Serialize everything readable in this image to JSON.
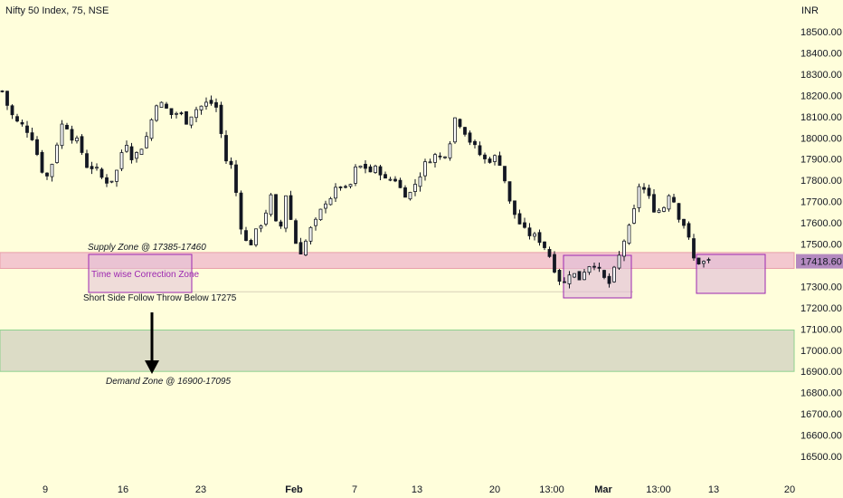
{
  "header": {
    "title": "Nifty 50 Index, 75, NSE",
    "currency": "INR"
  },
  "chart_data": {
    "type": "candlestick",
    "ylim": [
      16450,
      18600
    ],
    "y_ticks": [
      18500,
      18400,
      18300,
      18200,
      18100,
      18000,
      17900,
      17800,
      17700,
      17600,
      17500,
      17300,
      17200,
      17100,
      17000,
      16900,
      16800,
      16700,
      16600,
      16500
    ],
    "y_tick_labels": [
      "18500.00",
      "18400.00",
      "18300.00",
      "18200.00",
      "18100.00",
      "18000.00",
      "17900.00",
      "17800.00",
      "17700.00",
      "17600.00",
      "17500.00",
      "17300.00",
      "17200.00",
      "17100.00",
      "17000.00",
      "16900.00",
      "16800.00",
      "16700.00",
      "16600.00",
      "16500.00"
    ],
    "x_tick_labels": [
      "9",
      "16",
      "23",
      "Feb",
      "7",
      "13",
      "20",
      "13:00",
      "Mar",
      "13:00",
      "13",
      "20"
    ],
    "x_tick_bold": [
      false,
      false,
      false,
      true,
      false,
      false,
      false,
      false,
      true,
      false,
      false,
      false
    ],
    "last_price": "17418.60",
    "last_price_value": 17418.6,
    "close_path": [
      [
        0,
        18220
      ],
      [
        0.01,
        18120
      ],
      [
        0.02,
        18070
      ],
      [
        0.03,
        18050
      ],
      [
        0.04,
        18000
      ],
      [
        0.05,
        17860
      ],
      [
        0.06,
        17810
      ],
      [
        0.07,
        17960
      ],
      [
        0.08,
        18090
      ],
      [
        0.09,
        18010
      ],
      [
        0.1,
        17970
      ],
      [
        0.11,
        17870
      ],
      [
        0.12,
        17860
      ],
      [
        0.13,
        17810
      ],
      [
        0.14,
        17790
      ],
      [
        0.15,
        17850
      ],
      [
        0.16,
        18000
      ],
      [
        0.17,
        17900
      ],
      [
        0.18,
        17950
      ],
      [
        0.19,
        18020
      ],
      [
        0.2,
        18170
      ],
      [
        0.21,
        18150
      ],
      [
        0.22,
        18110
      ],
      [
        0.23,
        18120
      ],
      [
        0.24,
        18080
      ],
      [
        0.25,
        18130
      ],
      [
        0.26,
        18150
      ],
      [
        0.27,
        18170
      ],
      [
        0.28,
        18140
      ],
      [
        0.29,
        17900
      ],
      [
        0.3,
        17860
      ],
      [
        0.31,
        17600
      ],
      [
        0.32,
        17480
      ],
      [
        0.33,
        17550
      ],
      [
        0.34,
        17620
      ],
      [
        0.35,
        17720
      ],
      [
        0.36,
        17520
      ],
      [
        0.37,
        17750
      ],
      [
        0.38,
        17520
      ],
      [
        0.39,
        17460
      ],
      [
        0.4,
        17560
      ],
      [
        0.41,
        17610
      ],
      [
        0.42,
        17700
      ],
      [
        0.43,
        17730
      ],
      [
        0.44,
        17780
      ],
      [
        0.45,
        17740
      ],
      [
        0.46,
        17850
      ],
      [
        0.47,
        17870
      ],
      [
        0.48,
        17840
      ],
      [
        0.49,
        17860
      ],
      [
        0.5,
        17790
      ],
      [
        0.51,
        17820
      ],
      [
        0.52,
        17750
      ],
      [
        0.53,
        17730
      ],
      [
        0.54,
        17800
      ],
      [
        0.55,
        17870
      ],
      [
        0.56,
        17920
      ],
      [
        0.57,
        17910
      ],
      [
        0.58,
        17940
      ],
      [
        0.59,
        18100
      ],
      [
        0.6,
        18050
      ],
      [
        0.61,
        17980
      ],
      [
        0.62,
        17930
      ],
      [
        0.63,
        17890
      ],
      [
        0.64,
        17910
      ],
      [
        0.65,
        17880
      ],
      [
        0.66,
        17700
      ],
      [
        0.67,
        17620
      ],
      [
        0.68,
        17560
      ],
      [
        0.69,
        17540
      ],
      [
        0.7,
        17520
      ],
      [
        0.71,
        17470
      ],
      [
        0.72,
        17380
      ],
      [
        0.73,
        17300
      ],
      [
        0.74,
        17380
      ],
      [
        0.75,
        17330
      ],
      [
        0.76,
        17390
      ],
      [
        0.77,
        17420
      ],
      [
        0.78,
        17350
      ],
      [
        0.79,
        17310
      ],
      [
        0.8,
        17400
      ],
      [
        0.81,
        17520
      ],
      [
        0.82,
        17600
      ],
      [
        0.83,
        17790
      ],
      [
        0.84,
        17730
      ],
      [
        0.85,
        17660
      ],
      [
        0.86,
        17660
      ],
      [
        0.87,
        17760
      ],
      [
        0.88,
        17640
      ],
      [
        0.89,
        17580
      ],
      [
        0.9,
        17430
      ],
      [
        0.91,
        17410
      ],
      [
        0.92,
        17418.6
      ]
    ],
    "zones": [
      {
        "kind": "supply",
        "low": 17385,
        "high": 17460,
        "fill": "#f3c8cf",
        "stroke": "#e8a0aa"
      },
      {
        "kind": "demand",
        "low": 16900,
        "high": 17095,
        "fill": "#dcdcc6",
        "stroke": "#8fd18f"
      }
    ],
    "follow_line_value": 17275,
    "annotations": {
      "supply_label": "Supply Zone @ 17385-17460",
      "time_correction_label": "Time wise Correction Zone",
      "short_side_label": "Short Side Follow Throw Below 17275",
      "demand_label": "Demand Zone @ 16900-17095"
    },
    "colors": {
      "candle": "#131722",
      "purple": "#9c27b0",
      "purple_fill": "#e2bfd7",
      "price_badge": "#b48ac0"
    }
  }
}
